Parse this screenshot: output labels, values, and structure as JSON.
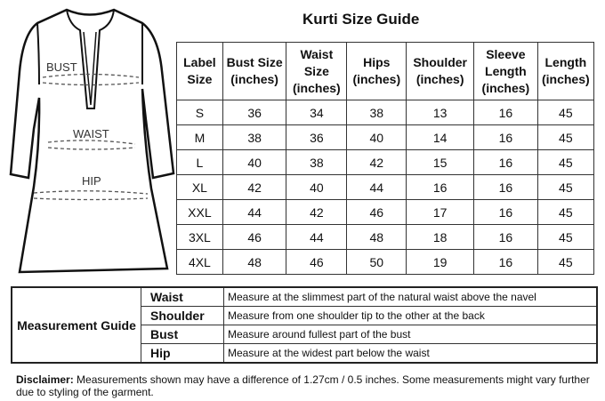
{
  "title": "Kurti Size Guide",
  "diagram": {
    "labels": {
      "bust": "BUST",
      "waist": "WAIST",
      "hip": "HIP"
    }
  },
  "size_table": {
    "headers": [
      "Label Size",
      "Bust Size (inches)",
      "Waist Size (inches)",
      "Hips (inches)",
      "Shoulder (inches)",
      "Sleeve Length (inches)",
      "Length (inches)"
    ],
    "rows": [
      [
        "S",
        "36",
        "34",
        "38",
        "13",
        "16",
        "45"
      ],
      [
        "M",
        "38",
        "36",
        "40",
        "14",
        "16",
        "45"
      ],
      [
        "L",
        "40",
        "38",
        "42",
        "15",
        "16",
        "45"
      ],
      [
        "XL",
        "42",
        "40",
        "44",
        "16",
        "16",
        "45"
      ],
      [
        "XXL",
        "44",
        "42",
        "46",
        "17",
        "16",
        "45"
      ],
      [
        "3XL",
        "46",
        "44",
        "48",
        "18",
        "16",
        "45"
      ],
      [
        "4XL",
        "48",
        "46",
        "50",
        "19",
        "16",
        "45"
      ]
    ]
  },
  "guide": {
    "heading": "Measurement Guide",
    "items": [
      {
        "label": "Waist",
        "text": "Measure at the slimmest part of the natural waist above the navel"
      },
      {
        "label": "Shoulder",
        "text": "Measure from one shoulder tip to the other at the back"
      },
      {
        "label": "Bust",
        "text": "Measure around fullest part of the bust"
      },
      {
        "label": "Hip",
        "text": "Measure at the widest part below the waist"
      }
    ]
  },
  "disclaimer": {
    "label": "Disclaimer:",
    "text": "Measurements shown may have a difference of 1.27cm / 0.5 inches. Some measurements might vary further due to styling of the garment."
  }
}
